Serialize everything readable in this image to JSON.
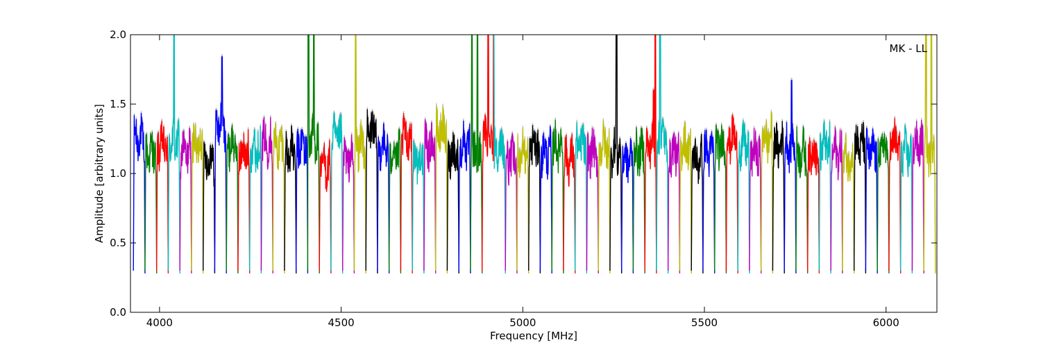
{
  "chart_data": {
    "type": "line",
    "xlabel": "Frequency [MHz]",
    "ylabel": "Amplitude [arbitrary units]",
    "annotation": "MK - LL",
    "xlim": [
      3920,
      6140
    ],
    "ylim": [
      0.0,
      2.0
    ],
    "x_ticks": [
      4000,
      4500,
      5000,
      5500,
      6000
    ],
    "y_ticks": [
      0.0,
      0.5,
      1.0,
      1.5,
      2.0
    ],
    "y_tick_labels": [
      "0.0",
      "0.5",
      "1.0",
      "1.5",
      "2.0"
    ],
    "grid": false,
    "color_cycle": [
      "#0000ff",
      "#008000",
      "#ff0000",
      "#00bfbf",
      "#bf00bf",
      "#bfbf00",
      "#000000"
    ],
    "shadow_color": "#c0c0c0",
    "channel_width_mhz": 32,
    "band_start_mhz": 3928,
    "num_channels": 69,
    "channel_levels": [
      1.25,
      1.15,
      1.2,
      1.22,
      1.15,
      1.2,
      1.1,
      1.35,
      1.2,
      1.15,
      1.18,
      1.22,
      1.2,
      1.15,
      1.2,
      1.25,
      1.05,
      1.25,
      1.1,
      1.2,
      1.3,
      1.2,
      1.15,
      1.25,
      1.1,
      1.2,
      1.3,
      1.15,
      1.2,
      1.12,
      1.25,
      1.18,
      1.1,
      1.15,
      1.2,
      1.15,
      1.2,
      1.1,
      1.2,
      1.15,
      1.2,
      1.15,
      1.1,
      1.15,
      1.2,
      1.25,
      1.15,
      1.2,
      1.1,
      1.15,
      1.2,
      1.25,
      1.2,
      1.15,
      1.25,
      1.2,
      1.2,
      1.15,
      1.15,
      1.2,
      1.15,
      1.1,
      1.2,
      1.15,
      1.18,
      1.22,
      1.15,
      1.2,
      1.15
    ],
    "spikes": [
      {
        "x": 4040,
        "y": 2.0
      },
      {
        "x": 4172,
        "y": 1.84
      },
      {
        "x": 4410,
        "y": 2.0
      },
      {
        "x": 4425,
        "y": 2.0
      },
      {
        "x": 4540,
        "y": 2.0
      },
      {
        "x": 4860,
        "y": 2.0
      },
      {
        "x": 4875,
        "y": 2.0
      },
      {
        "x": 4905,
        "y": 2.0
      },
      {
        "x": 4920,
        "y": 2.0
      },
      {
        "x": 5258,
        "y": 2.0
      },
      {
        "x": 5360,
        "y": 1.6
      },
      {
        "x": 5365,
        "y": 2.0
      },
      {
        "x": 5378,
        "y": 2.0
      },
      {
        "x": 5740,
        "y": 1.67
      },
      {
        "x": 6110,
        "y": 2.0
      },
      {
        "x": 6125,
        "y": 2.0
      }
    ]
  }
}
